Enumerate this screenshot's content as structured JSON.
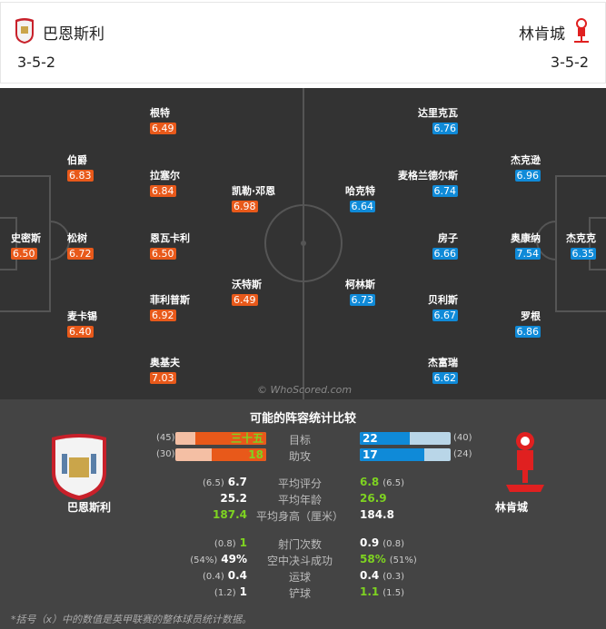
{
  "header": {
    "home": {
      "name": "巴恩斯利",
      "formation": "3-5-2"
    },
    "away": {
      "name": "林肯城",
      "formation": "3-5-2"
    }
  },
  "colors": {
    "home": "#e8591a",
    "away": "#0f8ad8",
    "pitch": "#333333",
    "highlight": "#7ed321"
  },
  "pitch": {
    "home_players": [
      {
        "name": "根特",
        "rating": "6.49"
      },
      {
        "name": "伯爵",
        "rating": "6.83"
      },
      {
        "name": "拉塞尔",
        "rating": "6.84"
      },
      {
        "name": "凯勒·邓恩",
        "rating": "6.98"
      },
      {
        "name": "史密斯",
        "rating": "6.50"
      },
      {
        "name": "松树",
        "rating": "6.72"
      },
      {
        "name": "恩瓦卡利",
        "rating": "6.50"
      },
      {
        "name": "沃特斯",
        "rating": "6.49"
      },
      {
        "name": "菲利普斯",
        "rating": "6.92"
      },
      {
        "name": "麦卡锡",
        "rating": "6.40"
      },
      {
        "name": "奥基夫",
        "rating": "7.03"
      }
    ],
    "away_players": [
      {
        "name": "达里克瓦",
        "rating": "6.76"
      },
      {
        "name": "杰克逊",
        "rating": "6.96"
      },
      {
        "name": "麦格兰德尔斯",
        "rating": "6.74"
      },
      {
        "name": "哈克特",
        "rating": "6.64"
      },
      {
        "name": "房子",
        "rating": "6.66"
      },
      {
        "name": "奥康纳",
        "rating": "7.54"
      },
      {
        "name": "杰克克",
        "rating": "6.35"
      },
      {
        "name": "柯林斯",
        "rating": "6.73"
      },
      {
        "name": "贝利斯",
        "rating": "6.67"
      },
      {
        "name": "罗根",
        "rating": "6.86"
      },
      {
        "name": "杰富瑞",
        "rating": "6.62"
      }
    ],
    "watermark": "© WhoScored.com"
  },
  "stats": {
    "title": "可能的阵容统计比较",
    "home_name": "巴恩斯利",
    "away_name": "林肯城",
    "bars": [
      {
        "label": "目标",
        "home": "三十五",
        "home_value": 35,
        "home_league": "(45)",
        "home_league_value": 45,
        "away": "22",
        "away_value": 22,
        "away_league": "(40)",
        "away_league_value": 40
      },
      {
        "label": "助攻",
        "home": "18",
        "home_value": 18,
        "home_league": "(30)",
        "home_league_value": 30,
        "away": "17",
        "away_value": 17,
        "away_league": "(24)",
        "away_league_value": 24
      }
    ],
    "rows": [
      {
        "label": "平均评分",
        "home_league": "(6.5)",
        "home": "6.7",
        "away": "6.8",
        "away_league": "(6.5)",
        "better": "away"
      },
      {
        "label": "平均年龄",
        "home_league": "",
        "home": "25.2",
        "away": "26.9",
        "away_league": "",
        "better": "away"
      },
      {
        "label": "平均身高（厘米）",
        "home_league": "",
        "home": "187.4",
        "away": "184.8",
        "away_league": "",
        "better": "home"
      },
      {
        "label": "射门次数",
        "home_league": "(0.8)",
        "home": "1",
        "away": "0.9",
        "away_league": "(0.8)",
        "better": "home"
      },
      {
        "label": "空中决斗成功",
        "home_league": "(54%)",
        "home": "49%",
        "away": "58%",
        "away_league": "(51%)",
        "better": "away"
      },
      {
        "label": "运球",
        "home_league": "(0.4)",
        "home": "0.4",
        "away": "0.4",
        "away_league": "(0.3)",
        "better": "none"
      },
      {
        "label": "铲球",
        "home_league": "(1.2)",
        "home": "1",
        "away": "1.1",
        "away_league": "(1.5)",
        "better": "away"
      }
    ],
    "footnote": "*括号（x）中的数值是英甲联赛的整体球员统计数据。"
  }
}
